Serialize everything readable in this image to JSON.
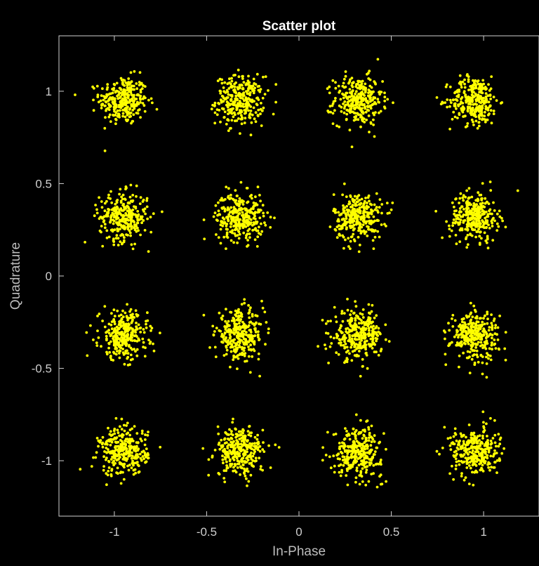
{
  "chart_data": {
    "type": "scatter",
    "title": "Scatter plot",
    "xlabel": "In-Phase",
    "ylabel": "Quadrature",
    "xlim": [
      -1.3,
      1.3
    ],
    "ylim": [
      -1.3,
      1.3
    ],
    "xticks": [
      -1,
      -0.5,
      0,
      0.5,
      1
    ],
    "yticks": [
      -1,
      -0.5,
      0,
      0.5,
      1
    ],
    "xtick_labels": [
      "-1",
      "-0.5",
      "0",
      "0.5",
      "1"
    ],
    "ytick_labels": [
      "-1",
      "-0.5",
      "0",
      "0.5",
      "1"
    ],
    "grid": false,
    "legend": "none",
    "marker_color": "#ffff00",
    "background_color": "#000000",
    "axes_color": "#cfcfcf",
    "constellation": "16-QAM",
    "levels": [
      -0.95,
      -0.32,
      0.32,
      0.95
    ],
    "noise_std": 0.065,
    "points_per_cluster": 300,
    "series": [
      {
        "x": -0.95,
        "y": 0.95
      },
      {
        "x": -0.32,
        "y": 0.95
      },
      {
        "x": 0.32,
        "y": 0.95
      },
      {
        "x": 0.95,
        "y": 0.95
      },
      {
        "x": -0.95,
        "y": 0.32
      },
      {
        "x": -0.32,
        "y": 0.32
      },
      {
        "x": 0.32,
        "y": 0.32
      },
      {
        "x": 0.95,
        "y": 0.32
      },
      {
        "x": -0.95,
        "y": -0.32
      },
      {
        "x": -0.32,
        "y": -0.32
      },
      {
        "x": 0.32,
        "y": -0.32
      },
      {
        "x": 0.95,
        "y": -0.32
      },
      {
        "x": -0.95,
        "y": -0.95
      },
      {
        "x": -0.32,
        "y": -0.95
      },
      {
        "x": 0.32,
        "y": -0.95
      },
      {
        "x": 0.95,
        "y": -0.95
      }
    ]
  }
}
